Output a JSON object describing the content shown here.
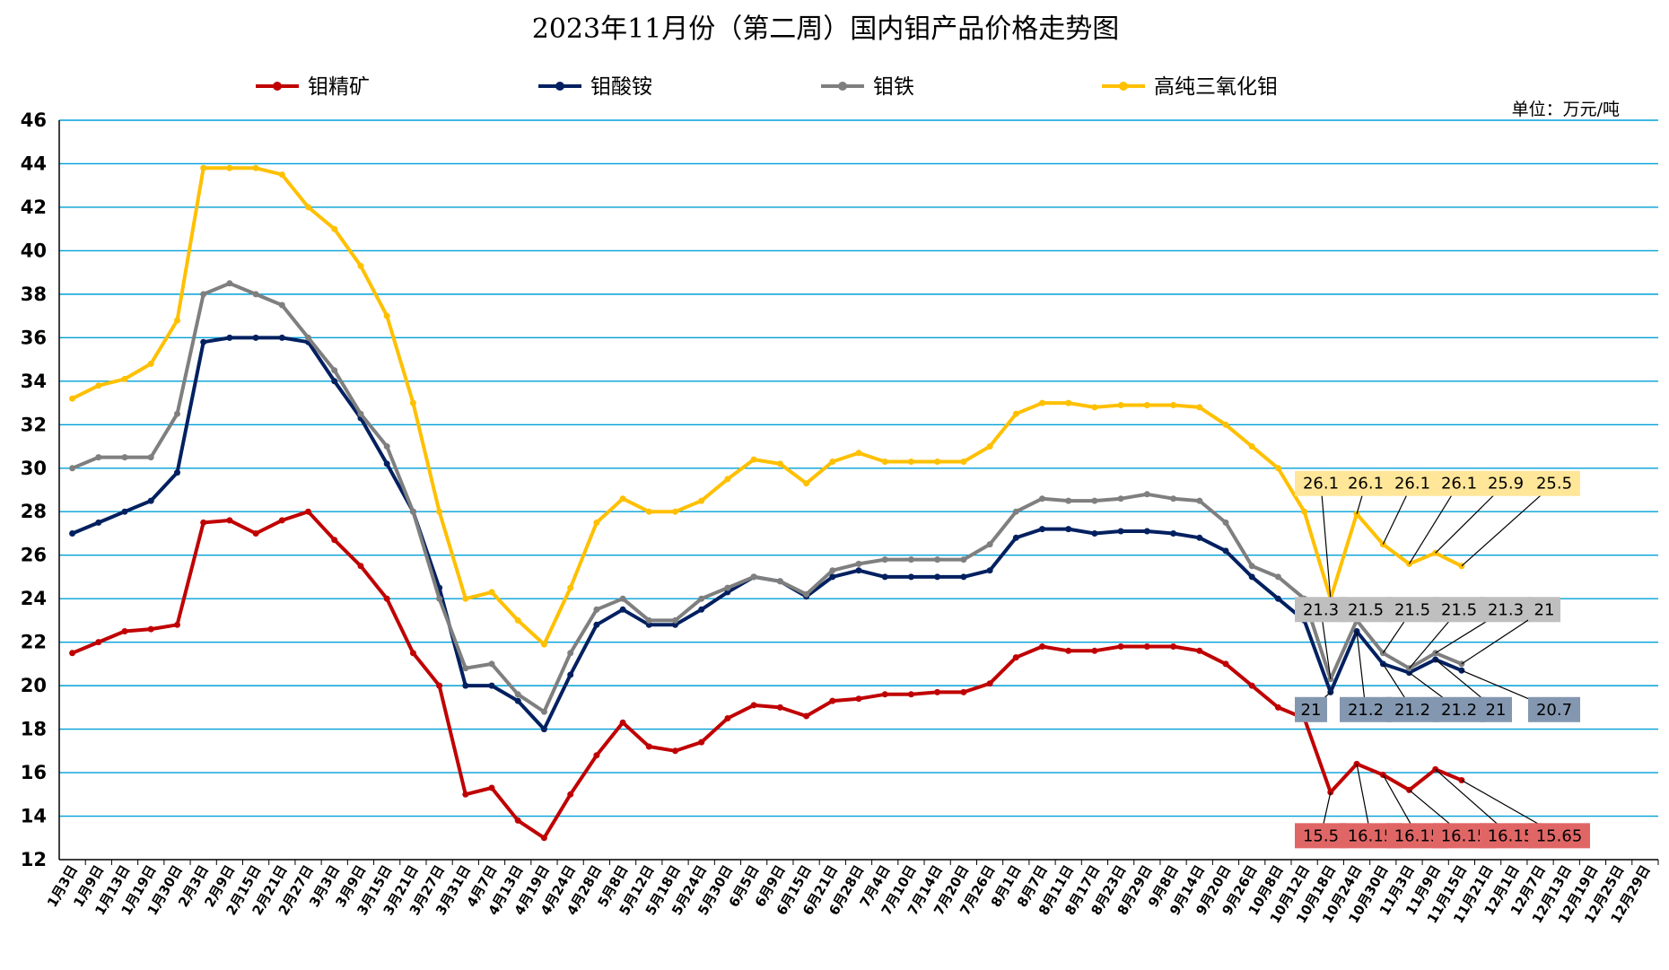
{
  "chart_data": {
    "type": "line",
    "title": "2023年11月份（第二周）国内钼产品价格走势图",
    "unit_label": "单位：万元/吨",
    "xlabel": "",
    "ylabel": "",
    "ylim": [
      12,
      46
    ],
    "yticks": [
      12,
      14,
      16,
      18,
      20,
      22,
      24,
      26,
      28,
      30,
      32,
      34,
      36,
      38,
      40,
      42,
      44,
      46
    ],
    "grid": "horizontal",
    "legend_position": "top",
    "categories": [
      "1月3日",
      "1月9日",
      "1月13日",
      "1月19日",
      "1月30日",
      "2月3日",
      "2月9日",
      "2月15日",
      "2月21日",
      "2月27日",
      "3月3日",
      "3月9日",
      "3月15日",
      "3月21日",
      "3月27日",
      "3月31日",
      "4月7日",
      "4月13日",
      "4月19日",
      "4月24日",
      "4月28日",
      "5月8日",
      "5月12日",
      "5月18日",
      "5月24日",
      "5月30日",
      "6月5日",
      "6月9日",
      "6月15日",
      "6月21日",
      "6月28日",
      "7月4日",
      "7月10日",
      "7月14日",
      "7月20日",
      "7月26日",
      "8月1日",
      "8月7日",
      "8月11日",
      "8月17日",
      "8月23日",
      "8月29日",
      "9月8日",
      "9月14日",
      "9月20日",
      "9月26日",
      "10月8日",
      "10月12日",
      "10月18日",
      "10月24日",
      "10月30日",
      "11月3日",
      "11月9日",
      "11月15日",
      "11月21日",
      "12月1日",
      "12月7日",
      "12月13日",
      "12月19日",
      "12月25日",
      "12月29日"
    ],
    "series": [
      {
        "name": "钼精矿",
        "color": "#C00000",
        "values": [
          21.5,
          22.0,
          22.5,
          22.6,
          22.8,
          27.5,
          27.6,
          27.0,
          27.6,
          28.0,
          26.7,
          25.5,
          24.0,
          21.5,
          20.0,
          15.0,
          15.3,
          13.8,
          13.0,
          15.0,
          16.8,
          18.3,
          17.2,
          17.0,
          17.4,
          18.5,
          19.1,
          19.0,
          18.6,
          19.3,
          19.4,
          19.6,
          19.6,
          19.7,
          19.7,
          20.1,
          21.3,
          21.8,
          21.6,
          21.6,
          21.8,
          21.8,
          21.8,
          21.6,
          21.0,
          20.0,
          19.0,
          18.5,
          15.1,
          16.4,
          15.9,
          15.2,
          16.15,
          15.65,
          null,
          null,
          null,
          null,
          null,
          null,
          null
        ]
      },
      {
        "name": "钼酸铵",
        "color": "#002060",
        "values": [
          27.0,
          27.5,
          28.0,
          28.5,
          29.8,
          35.8,
          36.0,
          36.0,
          36.0,
          35.8,
          34.0,
          32.3,
          30.2,
          28.0,
          24.5,
          20.0,
          20.0,
          19.3,
          18.0,
          20.5,
          22.8,
          23.5,
          22.8,
          22.8,
          23.5,
          24.3,
          25.0,
          24.8,
          24.1,
          25.0,
          25.3,
          25.0,
          25.0,
          25.0,
          25.0,
          25.3,
          26.8,
          27.2,
          27.2,
          27.0,
          27.1,
          27.1,
          27.0,
          26.8,
          26.2,
          25.0,
          24.0,
          23.0,
          19.7,
          22.5,
          21.0,
          20.6,
          21.2,
          20.7,
          null,
          null,
          null,
          null,
          null,
          null,
          null
        ]
      },
      {
        "name": "钼铁",
        "color": "#7F7F7F",
        "values": [
          30.0,
          30.5,
          30.5,
          30.5,
          32.5,
          38.0,
          38.5,
          38.0,
          37.5,
          36.0,
          34.5,
          32.5,
          31.0,
          28.0,
          24.0,
          20.8,
          21.0,
          19.6,
          18.8,
          21.5,
          23.5,
          24.0,
          23.0,
          23.0,
          24.0,
          24.5,
          25.0,
          24.8,
          24.2,
          25.3,
          25.6,
          25.8,
          25.8,
          25.8,
          25.8,
          26.5,
          28.0,
          28.6,
          28.5,
          28.5,
          28.6,
          28.8,
          28.6,
          28.5,
          27.5,
          25.5,
          25.0,
          24.0,
          20.3,
          23.0,
          21.5,
          20.8,
          21.5,
          21.0,
          null,
          null,
          null,
          null,
          null,
          null,
          null
        ]
      },
      {
        "name": "高纯三氧化钼",
        "color": "#FFC000",
        "values": [
          33.2,
          33.8,
          34.1,
          34.8,
          36.8,
          43.8,
          43.8,
          43.8,
          43.5,
          42.0,
          41.0,
          39.3,
          37.0,
          33.0,
          28.0,
          24.0,
          24.3,
          23.0,
          21.9,
          24.5,
          27.5,
          28.6,
          28.0,
          28.0,
          28.5,
          29.5,
          30.4,
          30.2,
          29.3,
          30.3,
          30.7,
          30.3,
          30.3,
          30.3,
          30.3,
          31.0,
          32.5,
          33.0,
          33.0,
          32.8,
          32.9,
          32.9,
          32.9,
          32.8,
          32.0,
          31.0,
          30.0,
          28.0,
          24.0,
          27.9,
          26.5,
          25.6,
          26.1,
          25.5,
          null,
          null,
          null,
          null,
          null,
          null,
          null
        ]
      }
    ],
    "callouts": [
      {
        "series": "高纯三氧化钼",
        "fill": "#FFE699",
        "labels": [
          "26.1",
          "26.1",
          "26.1",
          "26.1",
          "25.9",
          "25.5"
        ],
        "label_y": 29.3
      },
      {
        "series": "钼铁",
        "fill": "#BFBFBF",
        "labels": [
          "21.3",
          "21.5",
          "21.5",
          "21.5",
          "21.3",
          "21"
        ],
        "label_y": 23.5
      },
      {
        "series": "钼酸铵",
        "fill": "#8497B0",
        "labels": [
          "21",
          "21.2",
          "21.2",
          "21.2",
          "21",
          "20.7"
        ],
        "label_y": 18.9
      },
      {
        "series": "钼精矿",
        "fill": "#E06666",
        "labels": [
          "15.5",
          "16.15",
          "16.15",
          "16.15",
          "16.15",
          "15.65"
        ],
        "label_y": 13.1
      }
    ]
  }
}
